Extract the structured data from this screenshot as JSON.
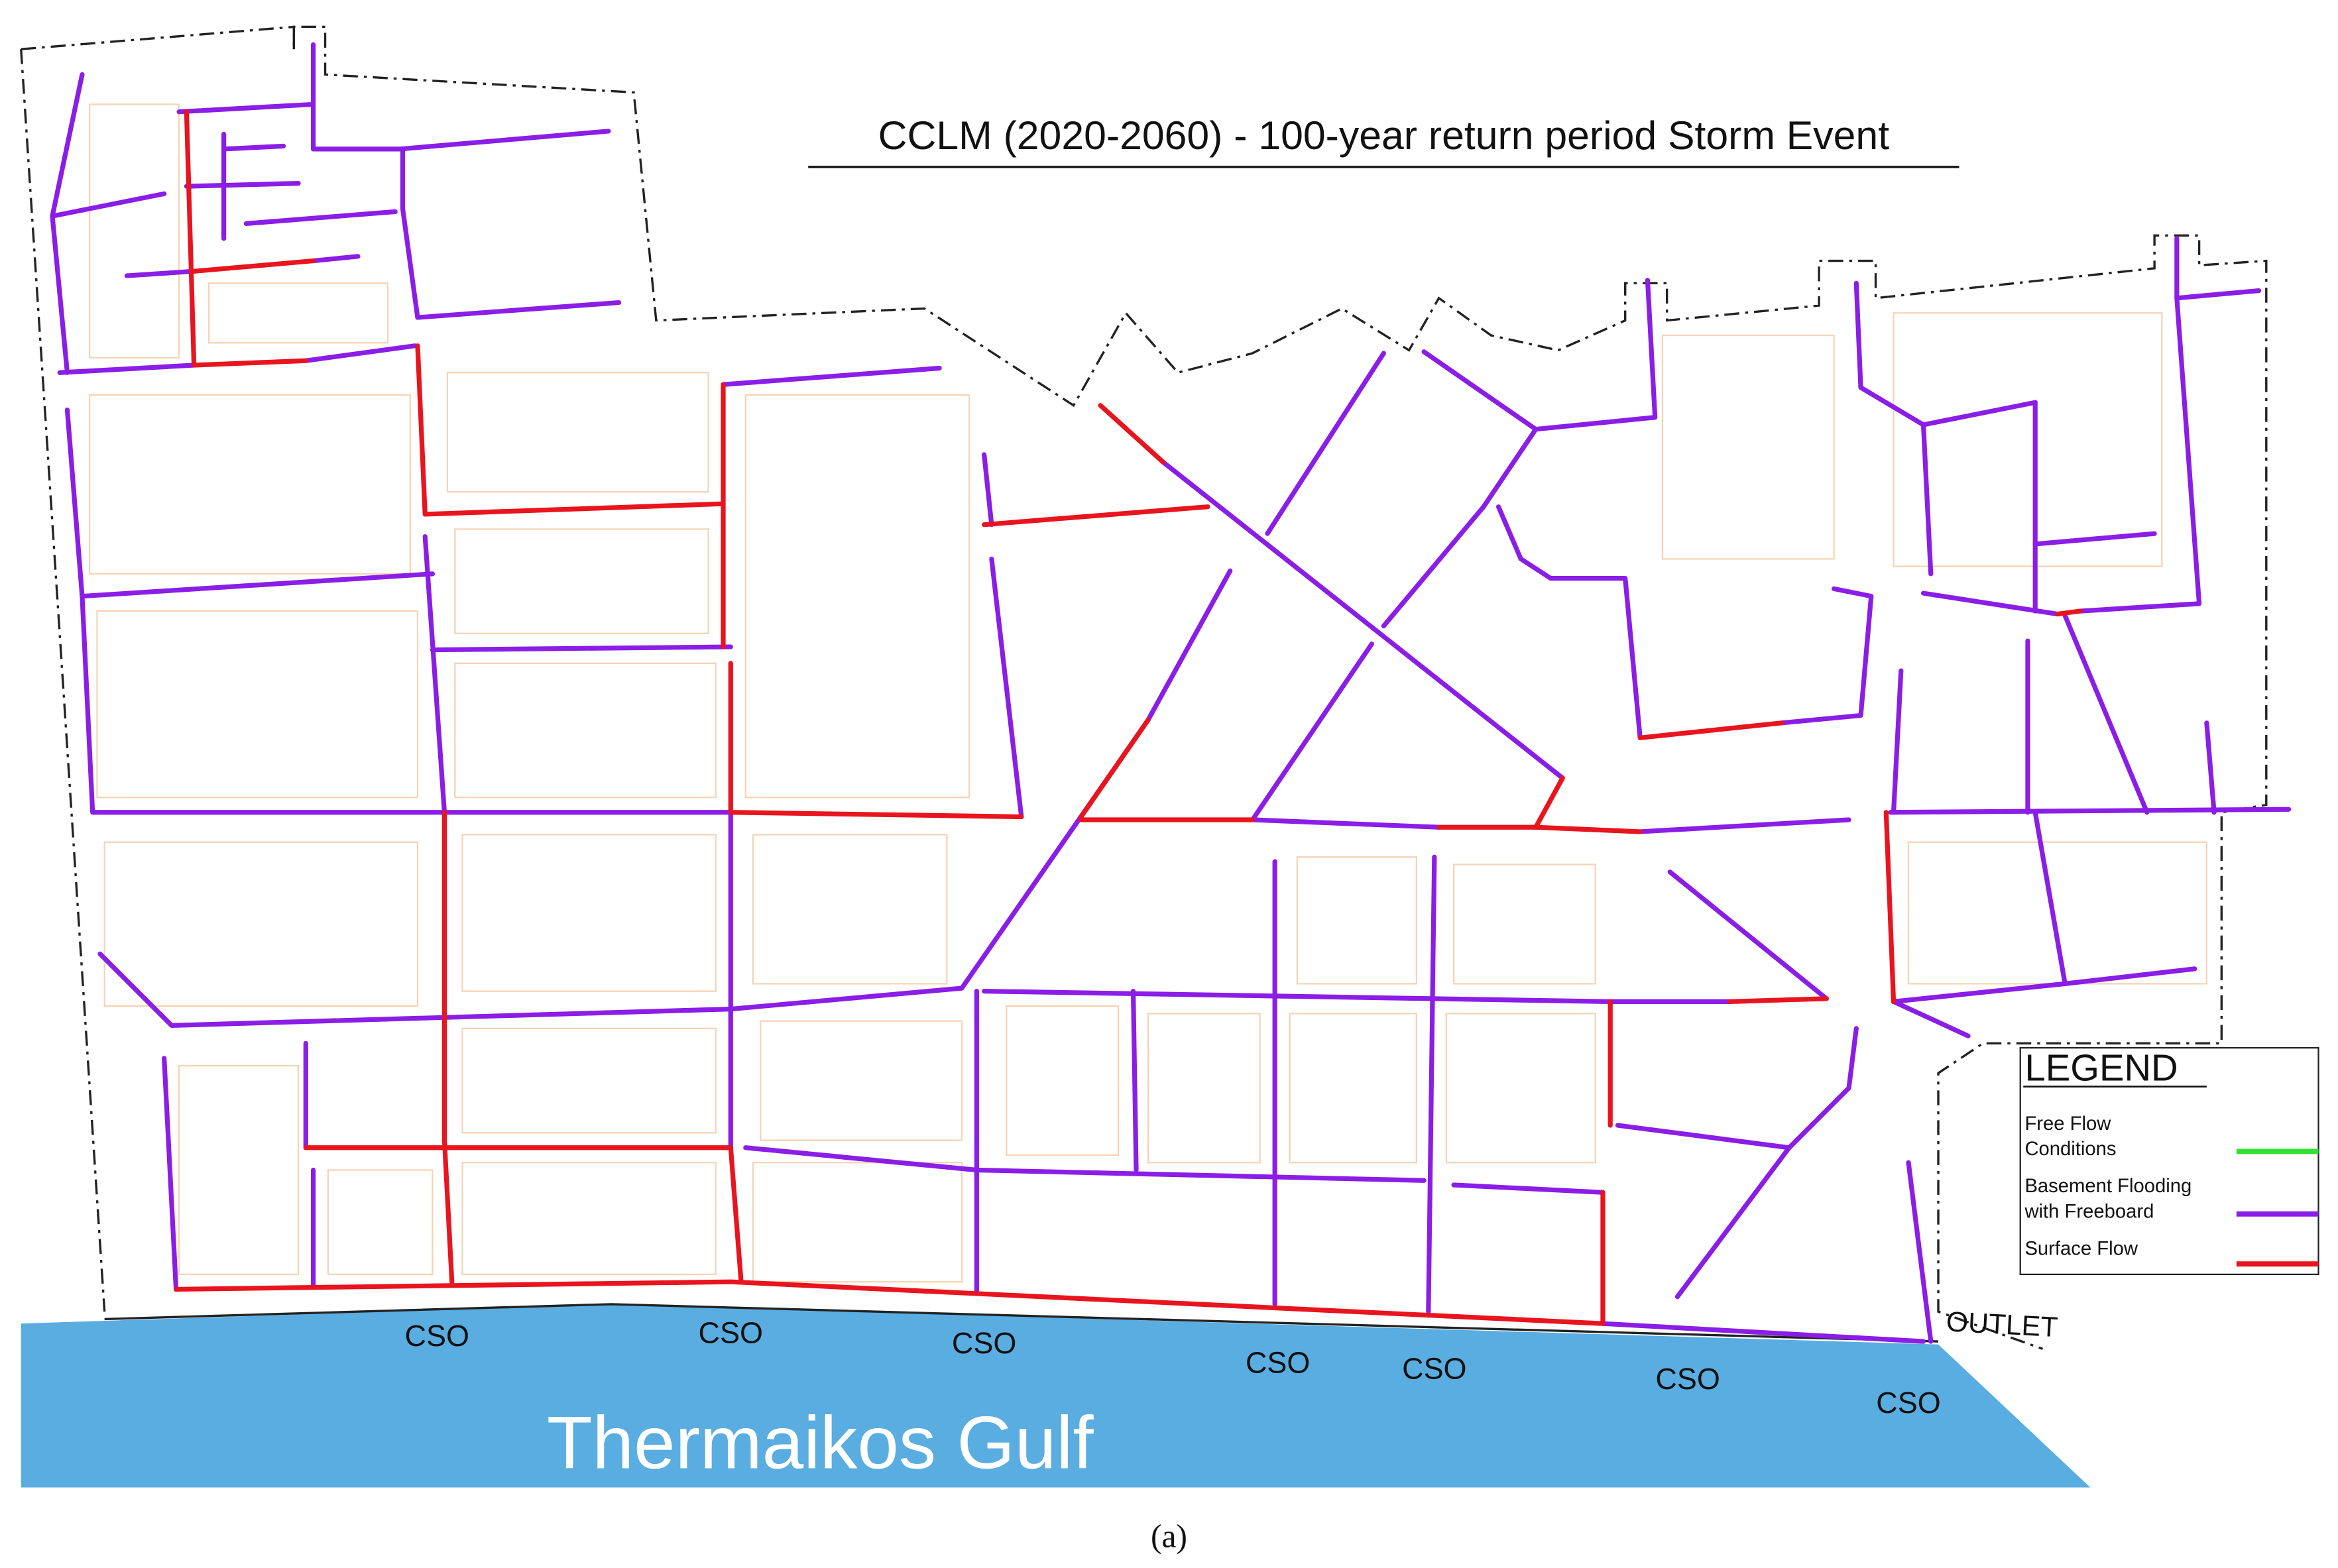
{
  "title": "CCLM (2020-2060) - 100-year return period Storm Event",
  "legend": {
    "title": "LEGEND",
    "items": [
      {
        "lines": [
          "Free Flow",
          "Conditions"
        ],
        "color": "#33e033"
      },
      {
        "lines": [
          "Basement Flooding",
          "with Freeboard"
        ],
        "color": "#8b1ee6"
      },
      {
        "lines": [
          "Surface Flow"
        ],
        "color": "#e8141e"
      }
    ]
  },
  "cso_labels": [
    "CSO",
    "CSO",
    "CSO",
    "CSO",
    "CSO",
    "CSO",
    "CSO"
  ],
  "outlet_label": "OUTLET",
  "sea_label": "Thermaikos Gulf",
  "caption": "(a)"
}
